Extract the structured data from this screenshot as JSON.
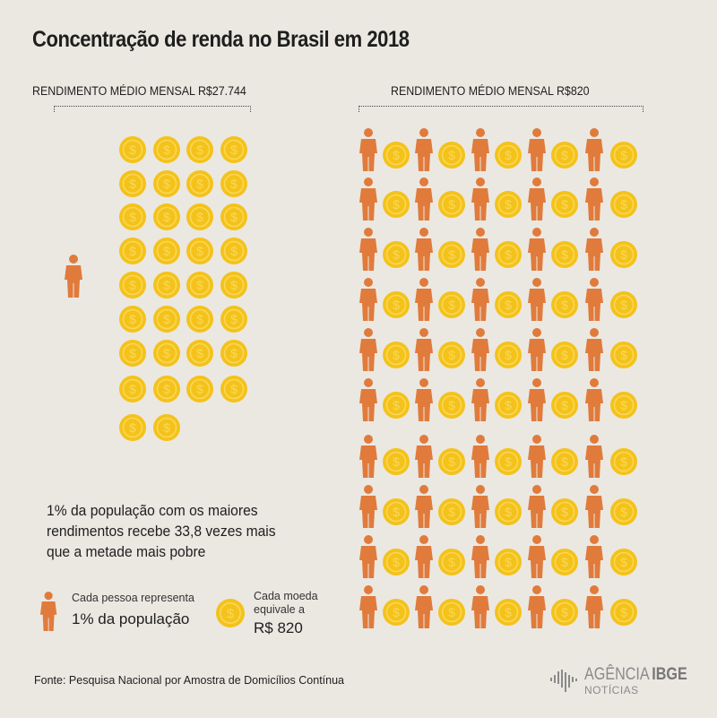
{
  "title": "Concentração de renda no Brasil em 2018",
  "left": {
    "header": "RENDIMENTO MÉDIO MENSAL R$27.744",
    "people": 1,
    "coins": 34
  },
  "right": {
    "header": "RENDIMENTO MÉDIO MENSAL R$820",
    "people": 50,
    "coins": 50
  },
  "summary": [
    "1% da população com os maiores",
    "rendimentos recebe 33,8 vezes mais",
    "que a metade mais pobre"
  ],
  "legend": {
    "person_line1": "Cada pessoa representa",
    "person_line2": "1% da população",
    "coin_line1": "Cada moeda",
    "coin_line2": "equivale a",
    "coin_line3": "R$ 820"
  },
  "source": "Fonte:  Pesquisa Nacional por Amostra de Domicílios Contínua",
  "logo": {
    "name": "AGÊNCIA",
    "brand": "IBGE",
    "sub": "NOTÍCIAS"
  },
  "colors": {
    "person": "#e07b3c",
    "coin": "#f4c21a",
    "coin_rim": "#f9d95a",
    "background": "#ebe8e2"
  },
  "icons": {
    "person": "person-icon",
    "coin": "coin-icon"
  }
}
